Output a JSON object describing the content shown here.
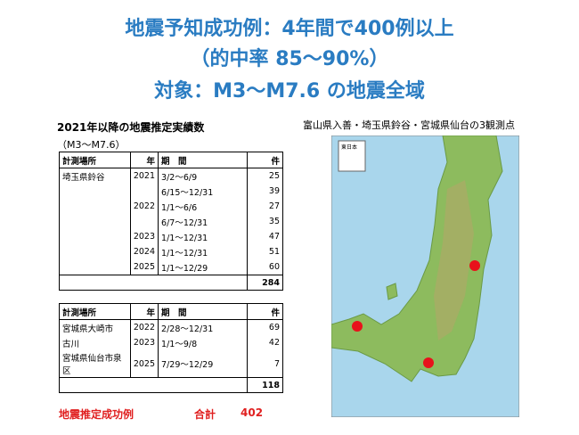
{
  "title_lines": [
    "地震予知成功例：4年間で400例以上",
    "（的中率 85～90%）",
    "対象：M3～M7.6 の地震全域"
  ],
  "left": {
    "heading": "2021年以降の地震推定実績数",
    "subheading": "（M3～M7.6）",
    "table1": {
      "header": [
        "計測場所",
        "年",
        "期　間",
        "件"
      ],
      "rows": [
        [
          "埼玉県鈴谷",
          2021,
          "3/2～6/9",
          25
        ],
        [
          null,
          null,
          "6/15～12/31",
          39
        ],
        [
          null,
          2022,
          "1/1～6/6",
          27
        ],
        [
          null,
          null,
          "6/7～12/31",
          35
        ],
        [
          null,
          2023,
          "1/1～12/31",
          47
        ],
        [
          null,
          2024,
          "1/1～12/31",
          51
        ],
        [
          null,
          2025,
          "1/1～12/29",
          60
        ]
      ],
      "total": 284
    },
    "table2": {
      "header": [
        "計測場所",
        "年",
        "期　間",
        "件"
      ],
      "rows": [
        [
          "宮城県大崎市",
          2022,
          "2/28～12/31",
          69
        ],
        [
          "古川",
          2023,
          "1/1～9/8",
          42
        ],
        [
          "宮城県仙台市泉区",
          2025,
          "7/29～12/29",
          7
        ]
      ],
      "total": 118
    },
    "footer": {
      "label": "地震推定成功例",
      "sum_label": "合計",
      "sum": 402
    }
  },
  "map": {
    "caption": "富山県入善・埼玉県鈴谷・宮城県仙台の3観測点",
    "legend_title": "東日本"
  }
}
